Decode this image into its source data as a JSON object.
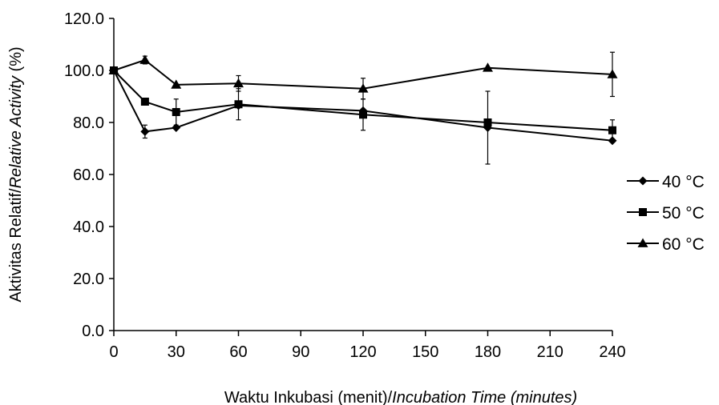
{
  "chart_data": {
    "type": "line",
    "title": "",
    "x": [
      0,
      15,
      30,
      60,
      120,
      180,
      240
    ],
    "xticks": [
      "0",
      "30",
      "60",
      "90",
      "120",
      "150",
      "180",
      "210",
      "240"
    ],
    "xtick_values": [
      0,
      30,
      60,
      90,
      120,
      150,
      180,
      210,
      240
    ],
    "xlim": [
      0,
      240
    ],
    "yticks": [
      "0.0",
      "20.0",
      "40.0",
      "60.0",
      "80.0",
      "100.0",
      "120.0"
    ],
    "ytick_values": [
      0,
      20,
      40,
      60,
      80,
      100,
      120
    ],
    "ylim": [
      0,
      120
    ],
    "xlabel_plain": "Waktu Inkubasi (menit)/",
    "xlabel_italic": "Incubation Time (minutes)",
    "ylabel_plain": "Aktivitas Relatif/",
    "ylabel_italic": "Relative Activity",
    "ylabel_suffix": " (%)",
    "grid": false,
    "legend_position": "right",
    "series": [
      {
        "name": "40 °C",
        "marker": "diamond",
        "values": [
          100,
          76.5,
          78,
          86.5,
          84.5,
          78,
          73
        ],
        "errors": [
          0,
          2.5,
          0,
          0,
          0,
          14,
          0
        ]
      },
      {
        "name": "50 °C",
        "marker": "square",
        "values": [
          100,
          88,
          84,
          87,
          83,
          80,
          77
        ],
        "errors": [
          0,
          0,
          5,
          6,
          6,
          0,
          4
        ]
      },
      {
        "name": "60 °C",
        "marker": "triangle",
        "values": [
          100,
          104,
          94.5,
          95,
          93,
          101,
          98.5
        ],
        "errors": [
          0,
          1.5,
          0,
          3,
          4,
          0,
          8.5
        ]
      }
    ]
  }
}
